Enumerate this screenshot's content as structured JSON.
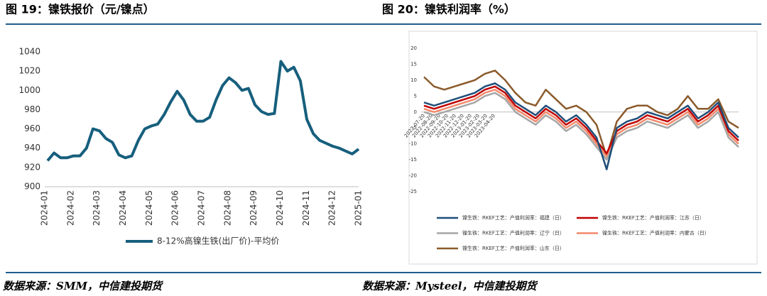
{
  "chart_data": [
    {
      "type": "line",
      "title": "图 19：镍铁报价（元/镍点）",
      "source": "数据来源：SMM，中信建投期货",
      "xticks": [
        "2024-01",
        "2024-02",
        "2024-03",
        "2024-04",
        "2024-05",
        "2024-06",
        "2024-07",
        "2024-08",
        "2024-09",
        "2024-10",
        "2024-11",
        "2024-12",
        "2025-01"
      ],
      "ylim": [
        900,
        1040
      ],
      "yticks": [
        900,
        920,
        940,
        960,
        980,
        1000,
        1020,
        1040
      ],
      "series": [
        {
          "name": "8-12%高镍生铁(出厂价)-平均价",
          "color": "#175f7d",
          "values": [
            927,
            935,
            930,
            930,
            932,
            932,
            940,
            960,
            958,
            950,
            946,
            933,
            930,
            932,
            948,
            960,
            963,
            965,
            975,
            988,
            999,
            990,
            975,
            968,
            968,
            972,
            990,
            1005,
            1013,
            1008,
            1000,
            1002,
            985,
            978,
            975,
            976,
            1030,
            1020,
            1024,
            1010,
            970,
            955,
            948,
            945,
            942,
            940,
            937,
            934,
            939
          ]
        }
      ]
    },
    {
      "type": "line",
      "title": "图 20：镍铁利润率（%）",
      "source": "数据来源：Mysteel，中信建投期货",
      "xticks": [
        "2022-07-20",
        "2022-08-20",
        "2022-09-20",
        "2022-10-20",
        "2022-11-20",
        "2022-12-20",
        "2023-01-20",
        "2023-02-20",
        "2023-03-20",
        "2023-04-20"
      ],
      "ylim": [
        -25,
        20
      ],
      "yticks": [
        -25,
        -20,
        -15,
        -10,
        -5,
        0,
        5,
        10,
        15,
        20
      ],
      "series": [
        {
          "name": "镍生铁：RKEF工艺：产值利润率：福建（日）",
          "color": "#1f4e79",
          "values": [
            3,
            2,
            3,
            4,
            5,
            6,
            8,
            9,
            7,
            3,
            1,
            -1,
            2,
            0,
            -3,
            -1,
            -4,
            -8,
            -18,
            -5,
            -3,
            -2,
            0,
            -1,
            -2,
            0,
            2,
            -2,
            0,
            3,
            -5,
            -8
          ]
        },
        {
          "name": "镍生铁：RKEF工艺：产值利润率：江苏（日）",
          "color": "#c00000",
          "values": [
            2,
            1,
            2,
            3,
            4,
            5,
            7,
            8,
            6,
            2,
            0,
            -2,
            1,
            -1,
            -4,
            -2,
            -5,
            -9,
            -13,
            -6,
            -4,
            -3,
            -1,
            -2,
            -3,
            -1,
            1,
            -3,
            -1,
            2,
            -6,
            -9
          ]
        },
        {
          "name": "镍生铁：RKEF工艺：产值利润率：辽宁（日）",
          "color": "#a6a6a6",
          "values": [
            0,
            -1,
            0,
            1,
            2,
            3,
            5,
            6,
            4,
            0,
            -2,
            -4,
            -1,
            -3,
            -6,
            -4,
            -7,
            -11,
            -15,
            -8,
            -6,
            -5,
            -3,
            -4,
            -5,
            -3,
            -1,
            -5,
            -3,
            0,
            -8,
            -11
          ]
        },
        {
          "name": "镍生铁：RKEF工艺：产值利润率：内蒙古（日）",
          "color": "#f4896b",
          "values": [
            1,
            0,
            1,
            2,
            3,
            4,
            6,
            7,
            5,
            1,
            -1,
            -3,
            0,
            -2,
            -5,
            -3,
            -6,
            -10,
            -14,
            -7,
            -5,
            -4,
            -2,
            -3,
            -4,
            -2,
            0,
            -4,
            -2,
            1,
            -7,
            -10
          ]
        },
        {
          "name": "镍生铁：RKEF工艺：产值利润率：山东（日）",
          "color": "#8b5a2b",
          "values": [
            11,
            8,
            7,
            8,
            9,
            10,
            12,
            13,
            10,
            6,
            3,
            2,
            7,
            4,
            1,
            2,
            0,
            -4,
            -14,
            -3,
            1,
            2,
            2,
            0,
            -1,
            1,
            5,
            1,
            1,
            4,
            -3,
            -5
          ]
        }
      ]
    }
  ]
}
